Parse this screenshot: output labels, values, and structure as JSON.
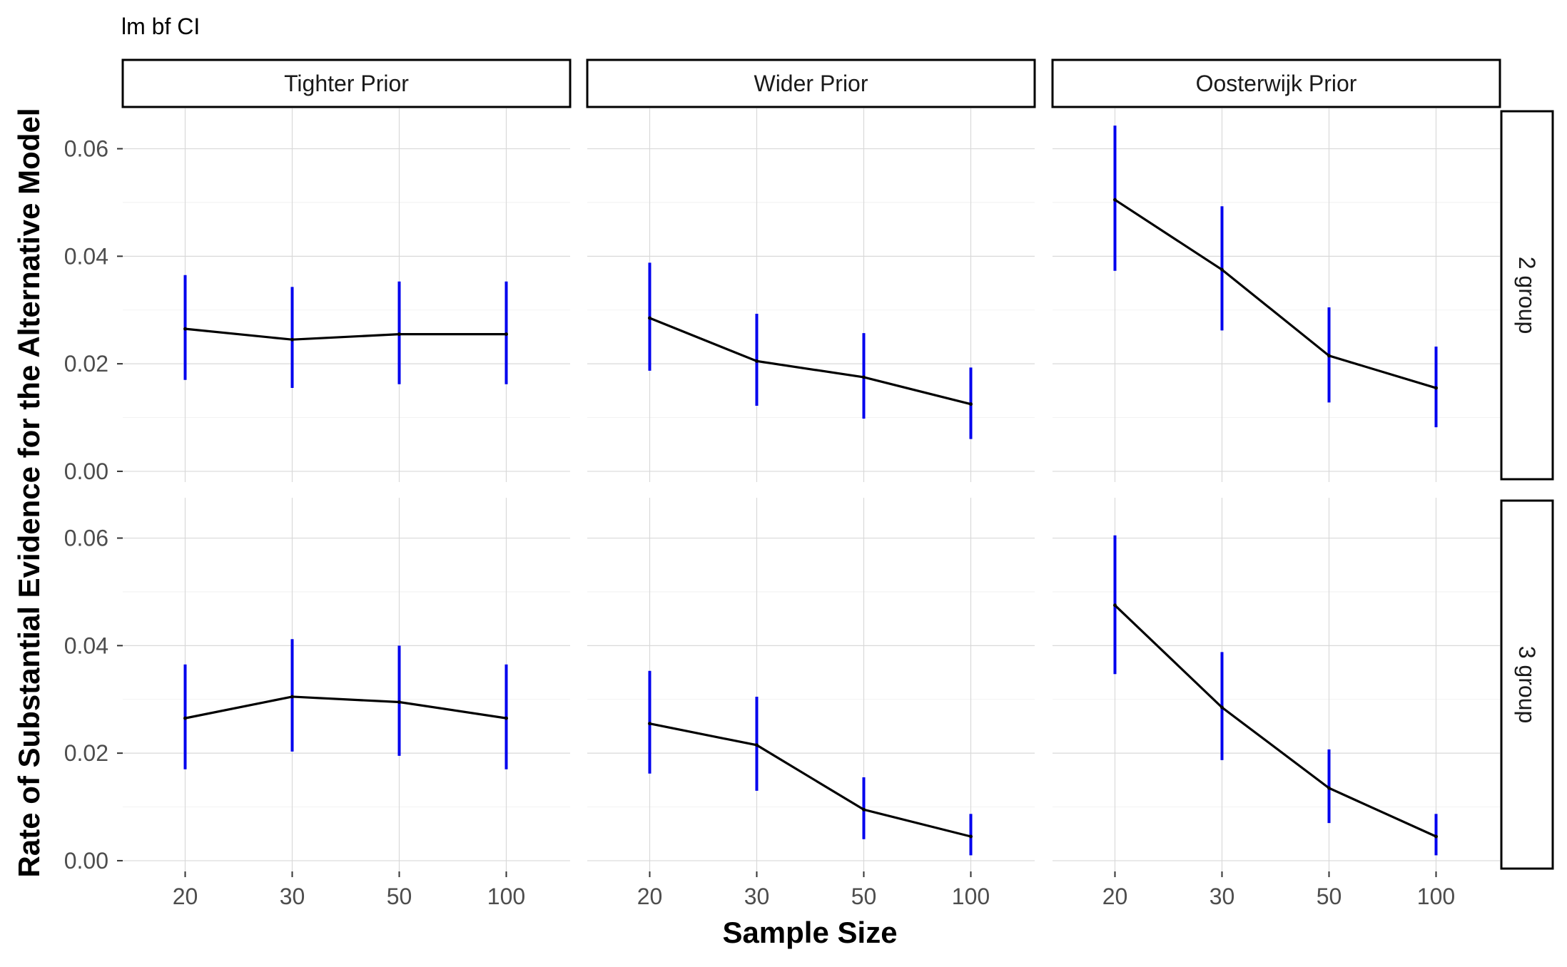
{
  "chart_data": {
    "type": "line",
    "title": "lm bf CI",
    "xlabel": "Sample Size",
    "ylabel": "Rate of Substantial Evidence for the Alternative Model",
    "x": [
      "20",
      "30",
      "50",
      "100"
    ],
    "ylim": [
      -0.002,
      0.0675
    ],
    "yticks": [
      "0.00",
      "0.02",
      "0.04",
      "0.06"
    ],
    "ytick_values": [
      0,
      0.02,
      0.04,
      0.06
    ],
    "grid": true,
    "colors": {
      "line": "#000000",
      "errorbar": "#0000ee",
      "grid": "#d9d9d9",
      "strip_border": "#000000"
    },
    "columns": [
      "Tighter Prior",
      "Wider Prior",
      "Oosterwijk Prior"
    ],
    "rows": [
      "2 group",
      "3 group"
    ],
    "panels": [
      {
        "column": "Tighter Prior",
        "row": "2 group",
        "values": [
          0.0265,
          0.0245,
          0.0255,
          0.0255
        ],
        "lower": [
          0.017,
          0.0155,
          0.0162,
          0.0162
        ],
        "upper": [
          0.0365,
          0.0343,
          0.0353,
          0.0353
        ]
      },
      {
        "column": "Wider Prior",
        "row": "2 group",
        "values": [
          0.0285,
          0.0205,
          0.0175,
          0.0125
        ],
        "lower": [
          0.0187,
          0.0122,
          0.0098,
          0.006
        ],
        "upper": [
          0.0388,
          0.0293,
          0.0257,
          0.0193
        ]
      },
      {
        "column": "Oosterwijk Prior",
        "row": "2 group",
        "values": [
          0.0505,
          0.0375,
          0.0215,
          0.0155
        ],
        "lower": [
          0.0373,
          0.0262,
          0.0128,
          0.0082
        ],
        "upper": [
          0.0643,
          0.0493,
          0.0305,
          0.0232
        ]
      },
      {
        "column": "Tighter Prior",
        "row": "3 group",
        "values": [
          0.0265,
          0.0305,
          0.0295,
          0.0265
        ],
        "lower": [
          0.017,
          0.0203,
          0.0195,
          0.017
        ],
        "upper": [
          0.0365,
          0.0412,
          0.04,
          0.0365
        ]
      },
      {
        "column": "Wider Prior",
        "row": "3 group",
        "values": [
          0.0255,
          0.0215,
          0.0095,
          0.0045
        ],
        "lower": [
          0.0162,
          0.013,
          0.004,
          0.001
        ],
        "upper": [
          0.0353,
          0.0305,
          0.0155,
          0.0087
        ]
      },
      {
        "column": "Oosterwijk Prior",
        "row": "3 group",
        "values": [
          0.0475,
          0.0285,
          0.0135,
          0.0045
        ],
        "lower": [
          0.0347,
          0.0187,
          0.007,
          0.001
        ],
        "upper": [
          0.0605,
          0.0388,
          0.0207,
          0.0087
        ]
      }
    ]
  }
}
